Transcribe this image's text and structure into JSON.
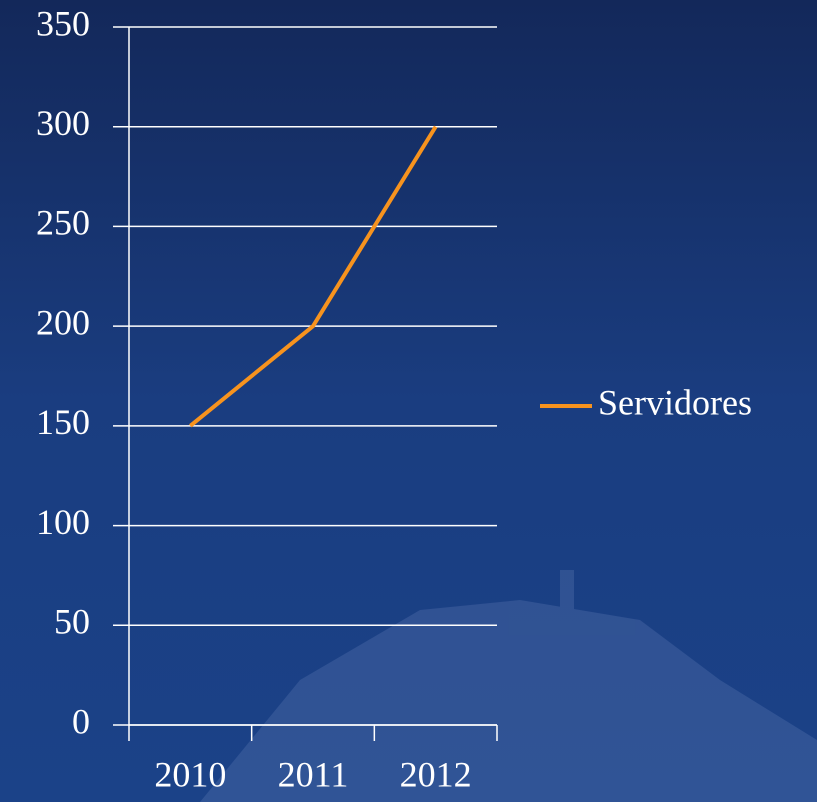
{
  "chart_data": {
    "type": "line",
    "categories": [
      "2010",
      "2011",
      "2012"
    ],
    "series": [
      {
        "name": "Servidores",
        "color": "#f7931e",
        "values": [
          150,
          200,
          300
        ]
      }
    ],
    "ylim": [
      0,
      350
    ],
    "yticks": [
      0,
      50,
      100,
      150,
      200,
      250,
      300,
      350
    ],
    "grid": true,
    "legend": "right"
  }
}
